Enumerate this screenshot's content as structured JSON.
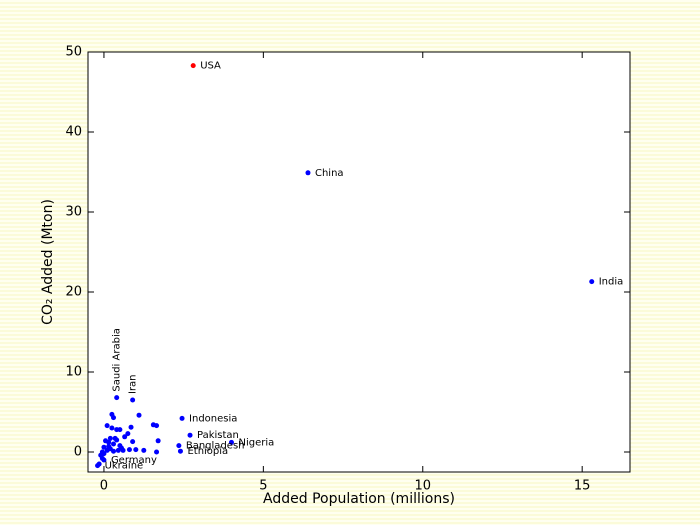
{
  "chart_data": {
    "type": "scatter",
    "x_label": "Added Population (millions)",
    "y_label": "CO₂ Added (Mton)",
    "x": [
      2.8,
      6.4,
      15.3,
      0.4,
      0.9,
      2.45,
      2.7,
      4.0,
      2.35,
      2.4,
      0.0,
      -0.2,
      0.25,
      0.3,
      1.1,
      1.55,
      1.65,
      0.1,
      0.25,
      0.4,
      0.5,
      0.85,
      0.75,
      0.65,
      0.2,
      0.35,
      0.4,
      0.05,
      0.15,
      0.3,
      0.5,
      0.55,
      0.9,
      1.7,
      0.8,
      1.0,
      1.25,
      1.65,
      0.0,
      0.1,
      -0.05,
      0.2,
      0.3,
      0.45,
      0.6,
      -0.1,
      -0.05,
      -0.15,
      0.0,
      0.15
    ],
    "y": [
      48.3,
      34.9,
      21.3,
      6.8,
      6.5,
      4.2,
      2.1,
      1.2,
      0.8,
      0.1,
      -1.0,
      -1.7,
      4.7,
      4.3,
      4.6,
      3.4,
      3.3,
      3.3,
      3.0,
      2.8,
      2.8,
      3.1,
      2.3,
      1.9,
      1.7,
      1.7,
      1.5,
      1.4,
      1.2,
      1.0,
      0.8,
      0.5,
      1.3,
      1.4,
      0.3,
      0.3,
      0.2,
      0.0,
      0.6,
      0.2,
      0.0,
      0.4,
      0.1,
      0.2,
      0.2,
      -0.4,
      -0.8,
      -1.5,
      -0.2,
      0.7
    ],
    "labels": [
      "USA",
      "China",
      "India",
      "Saudi Arabia",
      "Iran",
      "Indonesia",
      "Pakistan",
      "Nigeria",
      "Bangladesh",
      "Ethiopia",
      "Germany",
      "Ukraine",
      null,
      null,
      null,
      null,
      null,
      null,
      null,
      null,
      null,
      null,
      null,
      null,
      null,
      null,
      null,
      null,
      null,
      null,
      null,
      null,
      null,
      null,
      null,
      null,
      null,
      null,
      null,
      null,
      null,
      null,
      null,
      null,
      null,
      null,
      null,
      null,
      null,
      null
    ],
    "colors": [
      "#ff0000",
      "#0000ff",
      "#0000ff",
      "#0000ff",
      "#0000ff",
      "#0000ff",
      "#0000ff",
      "#0000ff",
      "#0000ff",
      "#0000ff",
      "#0000ff",
      "#0000ff",
      "#0000ff",
      "#0000ff",
      "#0000ff",
      "#0000ff",
      "#0000ff",
      "#0000ff",
      "#0000ff",
      "#0000ff",
      "#0000ff",
      "#0000ff",
      "#0000ff",
      "#0000ff",
      "#0000ff",
      "#0000ff",
      "#0000ff",
      "#0000ff",
      "#0000ff",
      "#0000ff",
      "#0000ff",
      "#0000ff",
      "#0000ff",
      "#0000ff",
      "#0000ff",
      "#0000ff",
      "#0000ff",
      "#0000ff",
      "#0000ff",
      "#0000ff",
      "#0000ff",
      "#0000ff",
      "#0000ff",
      "#0000ff",
      "#0000ff",
      "#0000ff",
      "#0000ff",
      "#0000ff",
      "#0000ff",
      "#0000ff"
    ],
    "xlim": [
      -0.5,
      16.5
    ],
    "xticks": [
      0,
      5,
      10,
      15
    ],
    "ylim": [
      -2.5,
      50
    ],
    "yticks": [
      0,
      10,
      20,
      30,
      40,
      50
    ]
  }
}
